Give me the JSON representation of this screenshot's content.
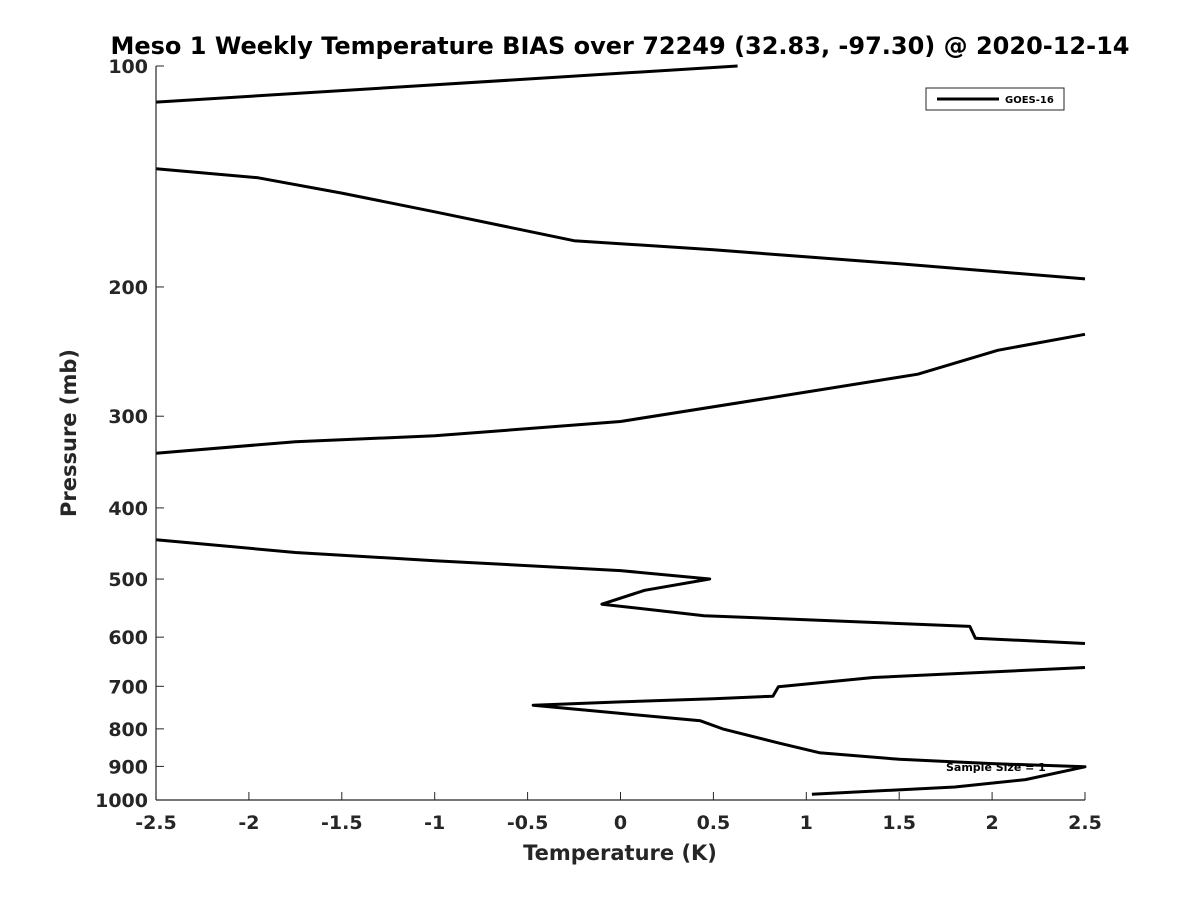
{
  "chart_data": {
    "type": "line",
    "title": "Meso 1 Weekly Temperature BIAS over 72249 (32.83, -97.30) @ 2020-12-14",
    "xlabel": "Temperature (K)",
    "ylabel": "Pressure (mb)",
    "xlim": [
      -2.5,
      2.5
    ],
    "ylim": [
      100,
      1000
    ],
    "y_scale": "log",
    "y_reversed": true,
    "grid": false,
    "legend_position": "top-right",
    "x_ticks": [
      -2.5,
      -2,
      -1.5,
      -1,
      -0.5,
      0,
      0.5,
      1,
      1.5,
      2,
      2.5
    ],
    "x_tick_labels": [
      "-2.5",
      "-2",
      "-1.5",
      "-1",
      "-0.5",
      "0",
      "0.5",
      "1",
      "1.5",
      "2",
      "2.5"
    ],
    "y_ticks": [
      100,
      200,
      300,
      400,
      500,
      600,
      700,
      800,
      900,
      1000
    ],
    "y_tick_labels": [
      "100",
      "200",
      "300",
      "400",
      "500",
      "600",
      "700",
      "800",
      "900",
      "1000"
    ],
    "annotation": "Sample Size = 1",
    "series": [
      {
        "name": "GOES-16",
        "color": "#000000",
        "segments": [
          [
            [
              0.63,
              100
            ],
            [
              -2.5,
              112
            ]
          ],
          [
            [
              -2.5,
              138
            ],
            [
              -1.95,
              142
            ],
            [
              -1.5,
              149
            ],
            [
              -1.0,
              158
            ],
            [
              -0.25,
              173
            ],
            [
              0.5,
              178
            ],
            [
              1.5,
              186
            ],
            [
              2.5,
              195
            ]
          ],
          [
            [
              2.5,
              232
            ],
            [
              2.03,
              244
            ],
            [
              1.6,
              263
            ],
            [
              0.85,
              282
            ],
            [
              0.0,
              305
            ],
            [
              -1.0,
              319
            ],
            [
              -1.75,
              325
            ],
            [
              -2.5,
              337
            ]
          ],
          [
            [
              -2.5,
              442
            ],
            [
              -1.75,
              460
            ],
            [
              -1.0,
              472
            ],
            [
              0.0,
              487
            ],
            [
              0.48,
              500
            ],
            [
              0.13,
              518
            ],
            [
              -0.1,
              541
            ],
            [
              0.45,
              561
            ],
            [
              1.0,
              568
            ],
            [
              1.88,
              580
            ],
            [
              1.91,
              602
            ],
            [
              2.5,
              612
            ]
          ],
          [
            [
              2.5,
              660
            ],
            [
              1.36,
              681
            ],
            [
              0.85,
              701
            ],
            [
              0.82,
              722
            ],
            [
              0.5,
              728
            ],
            [
              0.0,
              735
            ],
            [
              -0.47,
              743
            ],
            [
              0.0,
              762
            ],
            [
              0.43,
              780
            ],
            [
              0.55,
              800
            ],
            [
              0.85,
              836
            ],
            [
              1.07,
              862
            ],
            [
              1.5,
              880
            ],
            [
              2.0,
              892
            ],
            [
              2.5,
              901
            ],
            [
              2.18,
              938
            ],
            [
              1.8,
              960
            ],
            [
              1.03,
              982
            ]
          ]
        ]
      }
    ]
  }
}
